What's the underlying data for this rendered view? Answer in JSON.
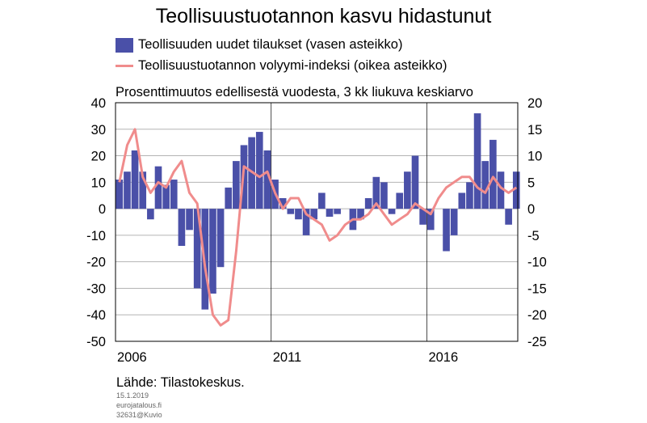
{
  "title": "Teollisuustuotannon kasvu hidastunut",
  "legend": {
    "bars": "Teollisuuden uudet tilaukset (vasen asteikko)",
    "line": "Teollisuustuotannon volyymi-indeksi (oikea asteikko)"
  },
  "subtitle": "Prosenttimuutos edellisestä vuodesta, 3 kk liukuva keskiarvo",
  "source": "Lähde: Tilastokeskus.",
  "date": "15.1.2019",
  "site": "eurojatalous.fi",
  "code": "32631@Kuvio",
  "colors": {
    "bars": "#4a50a8",
    "line": "#f08c8c",
    "grid": "#b4b4b4"
  },
  "chart_data": {
    "type": "bar",
    "x_ticks": [
      "2006",
      "2011",
      "2016"
    ],
    "x_range": [
      2006.0,
      2018.92
    ],
    "left_axis": {
      "ticks": [
        "40",
        "30",
        "20",
        "10",
        "0",
        "-10",
        "-20",
        "-30",
        "-40",
        "-50"
      ],
      "ylim": [
        -50,
        40
      ]
    },
    "right_axis": {
      "ticks": [
        "20",
        "15",
        "10",
        "5",
        "0",
        "-5",
        "-10",
        "-15",
        "-20",
        "-25"
      ],
      "ylim": [
        -25,
        20
      ]
    },
    "grid": true,
    "series": [
      {
        "name": "Teollisuuden uudet tilaukset (vasen asteikko)",
        "type": "bar",
        "axis": "left",
        "x": [
          2006.0,
          2006.25,
          2006.5,
          2006.75,
          2007.0,
          2007.25,
          2007.5,
          2007.75,
          2008.0,
          2008.25,
          2008.5,
          2008.75,
          2009.0,
          2009.25,
          2009.5,
          2009.75,
          2010.0,
          2010.25,
          2010.5,
          2010.75,
          2011.0,
          2011.25,
          2011.5,
          2011.75,
          2012.0,
          2012.25,
          2012.5,
          2012.75,
          2013.0,
          2013.25,
          2013.5,
          2013.75,
          2014.0,
          2014.25,
          2014.5,
          2014.75,
          2015.0,
          2015.25,
          2015.5,
          2015.75,
          2016.0,
          2016.25,
          2016.5,
          2016.75,
          2017.0,
          2017.25,
          2017.5,
          2017.75,
          2018.0,
          2018.25,
          2018.5,
          2018.75
        ],
        "y": [
          11,
          14,
          22,
          14,
          -4,
          16,
          9,
          11,
          -14,
          -8,
          -30,
          -38,
          -32,
          -22,
          8,
          18,
          24,
          27,
          29,
          22,
          11,
          4,
          -2,
          -4,
          -10,
          -4,
          6,
          -3,
          -2,
          0,
          -8,
          -4,
          4,
          12,
          10,
          -2,
          6,
          14,
          20,
          -6,
          -8,
          0,
          -16,
          -10,
          6,
          10,
          36,
          18,
          26,
          14,
          -6,
          14
        ],
        "unit": "%"
      },
      {
        "name": "Teollisuustuotannon volyymi-indeksi (oikea asteikko)",
        "type": "line",
        "axis": "right",
        "x": [
          2006.0,
          2006.25,
          2006.5,
          2006.75,
          2007.0,
          2007.25,
          2007.5,
          2007.75,
          2008.0,
          2008.25,
          2008.5,
          2008.75,
          2009.0,
          2009.25,
          2009.5,
          2009.75,
          2010.0,
          2010.25,
          2010.5,
          2010.75,
          2011.0,
          2011.25,
          2011.5,
          2011.75,
          2012.0,
          2012.25,
          2012.5,
          2012.75,
          2013.0,
          2013.25,
          2013.5,
          2013.75,
          2014.0,
          2014.25,
          2014.5,
          2014.75,
          2015.0,
          2015.25,
          2015.5,
          2015.75,
          2016.0,
          2016.25,
          2016.5,
          2016.75,
          2017.0,
          2017.25,
          2017.5,
          2017.75,
          2018.0,
          2018.25,
          2018.5,
          2018.75
        ],
        "y": [
          5,
          12,
          15,
          6,
          3,
          5,
          4,
          7,
          9,
          3,
          1,
          -11,
          -20,
          -22,
          -21,
          -8,
          8,
          7,
          6,
          7,
          3,
          0,
          2,
          2,
          -1,
          -2,
          -3,
          -6,
          -5,
          -3,
          -2,
          -2,
          -1,
          1,
          -1,
          -3,
          -2,
          -1,
          1,
          0,
          -1,
          2,
          4,
          5,
          6,
          6,
          4,
          3,
          6,
          4,
          3,
          4
        ],
        "unit": "%"
      }
    ]
  }
}
